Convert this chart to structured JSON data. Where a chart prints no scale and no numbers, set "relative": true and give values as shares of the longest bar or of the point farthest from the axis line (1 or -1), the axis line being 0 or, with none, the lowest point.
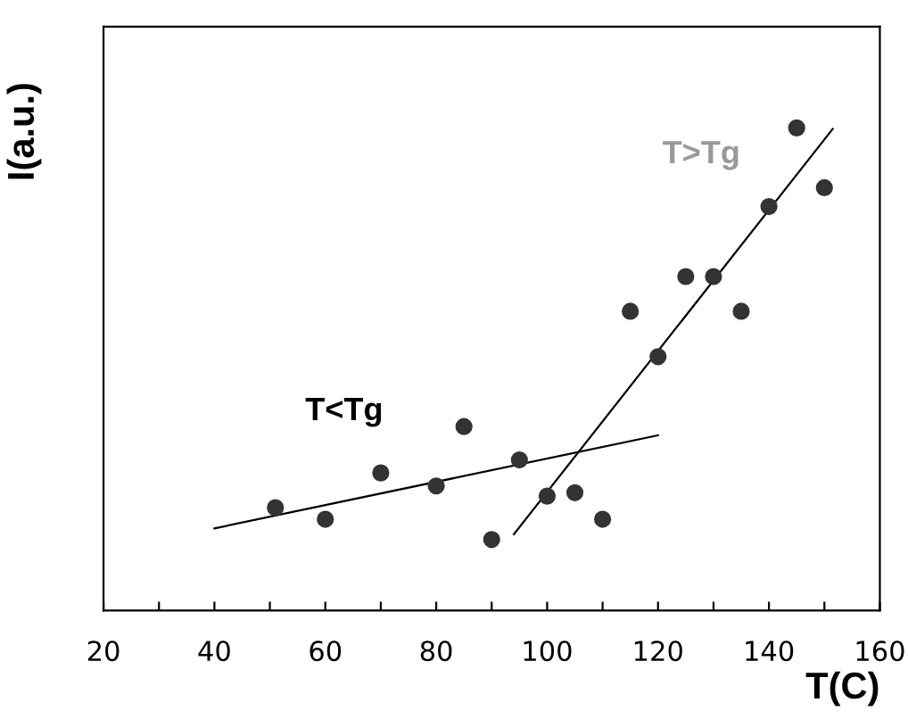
{
  "chart_data": {
    "type": "scatter",
    "xlabel": "T(C)",
    "ylabel": "I(a.u.)",
    "relative": true,
    "xlim": [
      20,
      160
    ],
    "xticks": [
      20,
      {
        "value": 30,
        "label": null
      },
      40,
      {
        "value": 50,
        "label": null
      },
      60,
      {
        "value": 70,
        "label": null
      },
      80,
      {
        "value": 90,
        "label": null
      },
      100,
      {
        "value": 110,
        "label": null
      },
      120,
      {
        "value": 130,
        "label": null
      },
      140,
      {
        "value": 150,
        "label": null
      },
      160
    ],
    "tick_labels": "x",
    "grid": false,
    "legend": false,
    "series": [
      {
        "marker": "circle",
        "color": "#333333",
        "x": [
          51,
          60,
          70,
          80,
          85,
          90,
          95,
          100,
          105,
          110,
          115,
          120,
          125,
          130,
          135,
          140,
          145,
          150
        ],
        "values": [
          0.213,
          0.189,
          0.285,
          0.258,
          0.381,
          0.147,
          0.312,
          0.237,
          0.244,
          0.189,
          0.62,
          0.526,
          0.692,
          0.692,
          0.62,
          0.837,
          1,
          0.876
        ]
      },
      {
        "type": "line",
        "color": "#000000",
        "x": [
          40,
          120
        ],
        "values": [
          0.17,
          0.363
        ]
      },
      {
        "type": "line",
        "color": "#000000",
        "x": [
          94,
          151.5
        ],
        "values": [
          0.158,
          0.998
        ]
      }
    ],
    "annotations": [
      "T<Tg",
      "T>Tg"
    ]
  }
}
